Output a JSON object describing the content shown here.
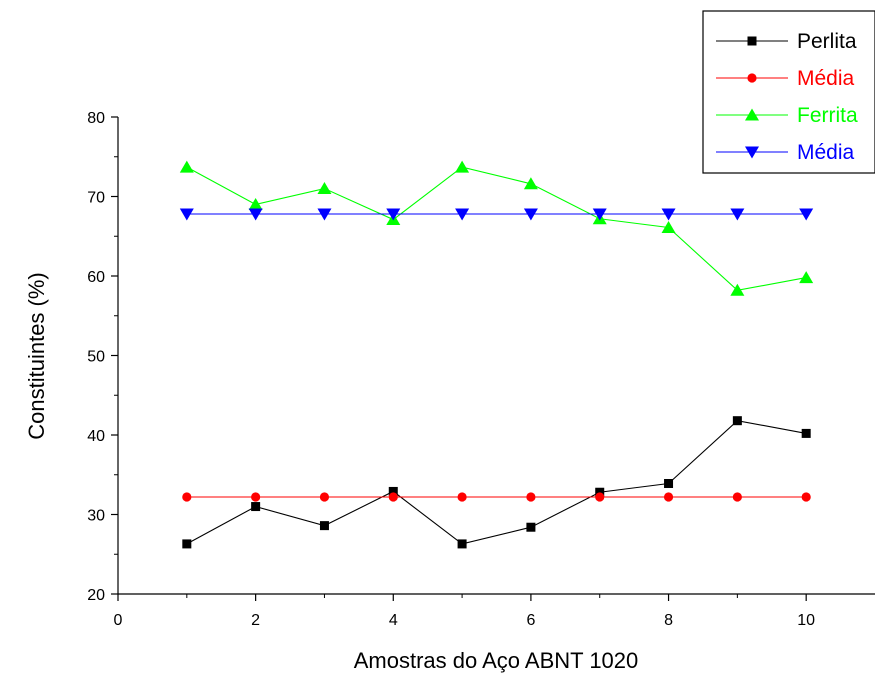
{
  "chart_data": {
    "type": "line",
    "title": "",
    "xlabel": "Amostras do Aço ABNT 1020",
    "ylabel": "Constituintes (%)",
    "xlim": [
      0,
      11
    ],
    "ylim": [
      20,
      80
    ],
    "xticks": [
      0,
      2,
      4,
      6,
      8,
      10
    ],
    "yticks": [
      20,
      30,
      40,
      50,
      60,
      70,
      80
    ],
    "grid": false,
    "legend_position": "top-right",
    "x": [
      1,
      2,
      3,
      4,
      5,
      6,
      7,
      8,
      9,
      10
    ],
    "series": [
      {
        "name": "Perlita",
        "color": "#000000",
        "marker": "square",
        "values": [
          26.3,
          31.0,
          28.6,
          32.9,
          26.3,
          28.4,
          32.8,
          33.9,
          41.8,
          40.2
        ]
      },
      {
        "name": "Média",
        "color": "#ff0000",
        "marker": "circle",
        "values": [
          32.2,
          32.2,
          32.2,
          32.2,
          32.2,
          32.2,
          32.2,
          32.2,
          32.2,
          32.2
        ]
      },
      {
        "name": "Ferrita",
        "color": "#00ff00",
        "marker": "triangle-up",
        "values": [
          73.7,
          69.0,
          71.0,
          67.1,
          73.7,
          71.6,
          67.2,
          66.1,
          58.2,
          59.8
        ]
      },
      {
        "name": "Média",
        "color": "#0000ff",
        "marker": "triangle-down",
        "values": [
          67.8,
          67.8,
          67.8,
          67.8,
          67.8,
          67.8,
          67.8,
          67.8,
          67.8,
          67.8
        ]
      }
    ]
  }
}
